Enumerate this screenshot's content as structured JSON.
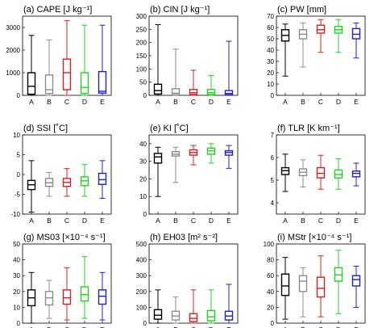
{
  "chart_data": [
    {
      "type": "boxplot",
      "title": "(a) CAPE [J kg⁻¹]",
      "categories": [
        "A",
        "B",
        "C",
        "D",
        "E"
      ],
      "ylim": [
        0,
        3500
      ],
      "yticks": [
        0,
        1000,
        2000,
        3000
      ],
      "grid": false,
      "boxes": [
        {
          "min": 0,
          "q1": 50,
          "median": 400,
          "q3": 1000,
          "max": 2650
        },
        {
          "min": 0,
          "q1": 80,
          "median": 250,
          "q3": 900,
          "max": 2450
        },
        {
          "min": 0,
          "q1": 250,
          "median": 1000,
          "q3": 1600,
          "max": 3300
        },
        {
          "min": 0,
          "q1": 80,
          "median": 350,
          "q3": 1000,
          "max": 3100
        },
        {
          "min": 0,
          "q1": 100,
          "median": 180,
          "q3": 1050,
          "max": 3100
        }
      ]
    },
    {
      "type": "boxplot",
      "title": "(b) CIN [J kg⁻¹]",
      "categories": [
        "A",
        "B",
        "C",
        "D",
        "E"
      ],
      "ylim": [
        0,
        300
      ],
      "yticks": [
        0,
        50,
        100,
        150,
        200,
        250,
        300
      ],
      "grid": false,
      "boxes": [
        {
          "min": 0,
          "q1": 5,
          "median": 18,
          "q3": 42,
          "max": 268
        },
        {
          "min": 0,
          "q1": 2,
          "median": 8,
          "q3": 25,
          "max": 175
        },
        {
          "min": 0,
          "q1": 3,
          "median": 10,
          "q3": 22,
          "max": 95
        },
        {
          "min": 0,
          "q1": 3,
          "median": 10,
          "q3": 22,
          "max": 75
        },
        {
          "min": 0,
          "q1": 2,
          "median": 7,
          "q3": 18,
          "max": 205
        }
      ]
    },
    {
      "type": "boxplot",
      "title": "(c) PW [mm]",
      "categories": [
        "A",
        "B",
        "C",
        "D",
        "E"
      ],
      "ylim": [
        0,
        70
      ],
      "yticks": [
        0,
        10,
        20,
        30,
        40,
        50,
        60,
        70
      ],
      "grid": false,
      "boxes": [
        {
          "min": 17,
          "q1": 48,
          "median": 53,
          "q3": 58,
          "max": 63
        },
        {
          "min": 25,
          "q1": 50,
          "median": 54,
          "q3": 58,
          "max": 64
        },
        {
          "min": 38,
          "q1": 55,
          "median": 58,
          "q3": 62,
          "max": 67
        },
        {
          "min": 38,
          "q1": 55,
          "median": 58,
          "q3": 61,
          "max": 67
        },
        {
          "min": 33,
          "q1": 50,
          "median": 54,
          "q3": 59,
          "max": 64
        }
      ]
    },
    {
      "type": "boxplot",
      "title": "(d) SSI [˚C]",
      "categories": [
        "A",
        "B",
        "C",
        "D",
        "E"
      ],
      "ylim": [
        -10,
        10
      ],
      "yticks": [
        -10,
        -5,
        0,
        5,
        10
      ],
      "grid": false,
      "boxes": [
        {
          "min": -9.5,
          "q1": -3.8,
          "median": -2.6,
          "q3": -1.5,
          "max": 3.5
        },
        {
          "min": -5.5,
          "q1": -3,
          "median": -2.1,
          "q3": -1,
          "max": 0.5
        },
        {
          "min": -5.5,
          "q1": -3,
          "median": -2,
          "q3": -1,
          "max": 1.5
        },
        {
          "min": -5.5,
          "q1": -2.8,
          "median": -1.6,
          "q3": -0.6,
          "max": 2.5
        },
        {
          "min": -6,
          "q1": -2.5,
          "median": -1.3,
          "q3": 0.3,
          "max": 3.5
        }
      ]
    },
    {
      "type": "boxplot",
      "title": "(e) KI [˚C]",
      "categories": [
        "A",
        "B",
        "C",
        "D",
        "E"
      ],
      "ylim": [
        0,
        45
      ],
      "yticks": [
        0,
        10,
        20,
        30,
        40
      ],
      "grid": false,
      "boxes": [
        {
          "min": 10,
          "q1": 29,
          "median": 32.5,
          "q3": 34.5,
          "max": 38
        },
        {
          "min": 18,
          "q1": 33,
          "median": 34,
          "q3": 35.5,
          "max": 38
        },
        {
          "min": 28,
          "q1": 33.5,
          "median": 35,
          "q3": 36.5,
          "max": 39
        },
        {
          "min": 29,
          "q1": 34,
          "median": 36,
          "q3": 37.5,
          "max": 40
        },
        {
          "min": 26,
          "q1": 33.5,
          "median": 35,
          "q3": 36,
          "max": 39
        }
      ]
    },
    {
      "type": "boxplot",
      "title": "(f) TLR [K km⁻¹]",
      "categories": [
        "A",
        "B",
        "C",
        "D",
        "E"
      ],
      "ylim": [
        3.5,
        7
      ],
      "yticks": [
        4,
        5,
        6,
        7
      ],
      "grid": false,
      "boxes": [
        {
          "min": 4.5,
          "q1": 5.25,
          "median": 5.42,
          "q3": 5.55,
          "max": 6.15
        },
        {
          "min": 4.7,
          "q1": 5.2,
          "median": 5.35,
          "q3": 5.5,
          "max": 5.9
        },
        {
          "min": 4.6,
          "q1": 5.1,
          "median": 5.3,
          "q3": 5.55,
          "max": 6.1
        },
        {
          "min": 4.6,
          "q1": 5.1,
          "median": 5.25,
          "q3": 5.45,
          "max": 5.95
        },
        {
          "min": 4.75,
          "q1": 5.15,
          "median": 5.3,
          "q3": 5.4,
          "max": 5.75
        }
      ]
    },
    {
      "type": "boxplot",
      "title": "(g) MS03 [×10⁻⁴ s⁻¹]",
      "categories": [
        "A",
        "B",
        "C",
        "D",
        "E"
      ],
      "ylim": [
        0,
        50
      ],
      "yticks": [
        0,
        10,
        20,
        30,
        40,
        50
      ],
      "grid": false,
      "boxes": [
        {
          "min": 0,
          "q1": 11,
          "median": 16,
          "q3": 21,
          "max": 32
        },
        {
          "min": 3,
          "q1": 11.5,
          "median": 16,
          "q3": 20,
          "max": 27
        },
        {
          "min": 2,
          "q1": 12,
          "median": 16,
          "q3": 21,
          "max": 35
        },
        {
          "min": 3,
          "q1": 14,
          "median": 18,
          "q3": 23,
          "max": 42
        },
        {
          "min": 2,
          "q1": 12,
          "median": 17,
          "q3": 21,
          "max": 32
        }
      ]
    },
    {
      "type": "boxplot",
      "title": "(h) EH03 [m² s⁻²]",
      "categories": [
        "A",
        "B",
        "C",
        "D",
        "E"
      ],
      "ylim": [
        0,
        500
      ],
      "yticks": [
        0,
        100,
        200,
        300,
        400,
        500
      ],
      "grid": false,
      "boxes": [
        {
          "min": 0,
          "q1": 25,
          "median": 50,
          "q3": 85,
          "max": 210
        },
        {
          "min": 0,
          "q1": 20,
          "median": 45,
          "q3": 75,
          "max": 165
        },
        {
          "min": 0,
          "q1": 10,
          "median": 30,
          "q3": 60,
          "max": 210
        },
        {
          "min": 0,
          "q1": 15,
          "median": 40,
          "q3": 80,
          "max": 210
        },
        {
          "min": 0,
          "q1": 20,
          "median": 45,
          "q3": 75,
          "max": 245
        }
      ]
    },
    {
      "type": "boxplot",
      "title": "(i) MStr [×10⁻⁴ s⁻¹]",
      "categories": [
        "A",
        "B",
        "C",
        "D",
        "E"
      ],
      "ylim": [
        0,
        100
      ],
      "yticks": [
        0,
        20,
        40,
        60,
        80,
        100
      ],
      "grid": false,
      "boxes": [
        {
          "min": 5,
          "q1": 35,
          "median": 47,
          "q3": 62,
          "max": 83
        },
        {
          "min": 8,
          "q1": 40,
          "median": 53,
          "q3": 60,
          "max": 70
        },
        {
          "min": 8,
          "q1": 33,
          "median": 44,
          "q3": 58,
          "max": 85
        },
        {
          "min": 12,
          "q1": 53,
          "median": 61,
          "q3": 70,
          "max": 92
        },
        {
          "min": 20,
          "q1": 47,
          "median": 55,
          "q3": 60,
          "max": 72
        }
      ]
    }
  ],
  "colors": [
    "#000000",
    "#8c8c8c",
    "#d42020",
    "#20d420",
    "#2020c8"
  ]
}
